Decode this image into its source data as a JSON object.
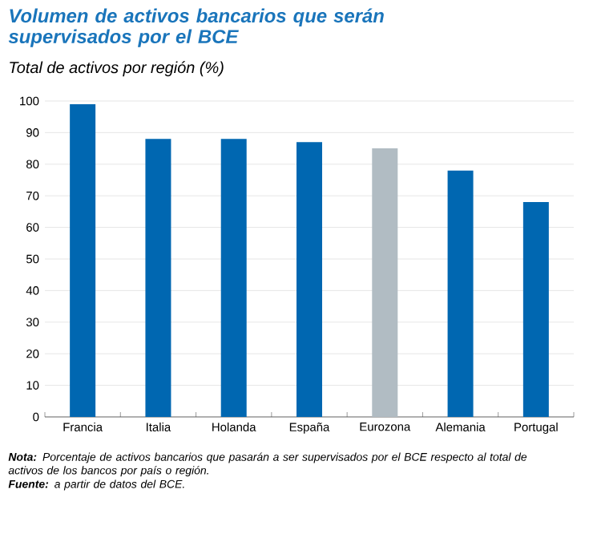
{
  "chart_data": {
    "type": "bar",
    "title": "Volumen de activos bancarios que serán supervisados por el BCE",
    "subtitle": "Total de activos por región (%)",
    "categories": [
      "Francia",
      "Italia",
      "Holanda",
      "España",
      "Eurozona",
      "Alemania",
      "Portugal"
    ],
    "values": [
      99,
      88,
      88,
      87,
      85,
      78,
      68
    ],
    "colors": [
      "#0067b1",
      "#0067b1",
      "#0067b1",
      "#0067b1",
      "#b1bcc3",
      "#0067b1",
      "#0067b1"
    ],
    "ylim": [
      0,
      100
    ],
    "yticks": [
      0,
      10,
      20,
      30,
      40,
      50,
      60,
      70,
      80,
      90,
      100
    ],
    "grid": "y",
    "annotations": [
      "**Nota:** Porcentaje de activos bancarios que pasarán a ser supervisados por el BCE respecto al total de activos de los bancos por país o región.",
      "**Fuente:** a partir de datos del BCE."
    ]
  }
}
